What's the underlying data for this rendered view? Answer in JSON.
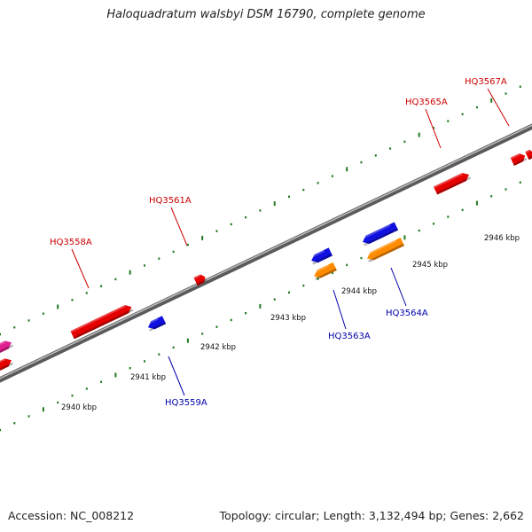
{
  "title": "Haloquadratum walsbyi DSM 16790, complete genome",
  "footer": {
    "accession": "Accession: NC_008212",
    "topology": "Topology: circular; Length: 3,132,494 bp; Genes: 2,662"
  },
  "colors": {
    "backbone": "#808080",
    "tick": "#1f7a1f",
    "label_top": "#cc0000",
    "label_bottom": "#0000aa",
    "gene_red": "#e60000",
    "gene_blue": "#1010e0",
    "gene_orange": "#ff8c00",
    "gene_pink": "#e0208f"
  },
  "map": {
    "scale_labels": [
      "2940 kbp",
      "2941 kbp",
      "2942 kbp",
      "2943 kbp",
      "2944 kbp",
      "2945 kbp",
      "2946 kbp"
    ],
    "scale_positions_kbp": [
      2940,
      2941,
      2942,
      2943,
      2944,
      2945,
      2946
    ],
    "gene_labels": [
      {
        "id": "HQ3558A",
        "strand": "top"
      },
      {
        "id": "HQ3561A",
        "strand": "top"
      },
      {
        "id": "HQ3565A",
        "strand": "top"
      },
      {
        "id": "HQ3567A",
        "strand": "top"
      },
      {
        "id": "HQ3559A",
        "strand": "bottom"
      },
      {
        "id": "HQ3563A",
        "strand": "bottom"
      },
      {
        "id": "HQ3564A",
        "strand": "bottom"
      }
    ],
    "features": [
      {
        "color": "pink",
        "strand": "plus"
      },
      {
        "color": "red",
        "strand": "plus"
      },
      {
        "color": "red",
        "strand": "plus"
      },
      {
        "color": "red",
        "strand": "plus"
      },
      {
        "color": "red",
        "strand": "plus"
      },
      {
        "color": "red",
        "strand": "plus"
      },
      {
        "color": "red",
        "strand": "plus"
      },
      {
        "color": "blue",
        "strand": "minus"
      },
      {
        "color": "blue",
        "strand": "minus"
      },
      {
        "color": "blue",
        "strand": "minus"
      },
      {
        "color": "orange",
        "strand": "minus"
      },
      {
        "color": "orange",
        "strand": "minus"
      }
    ]
  }
}
